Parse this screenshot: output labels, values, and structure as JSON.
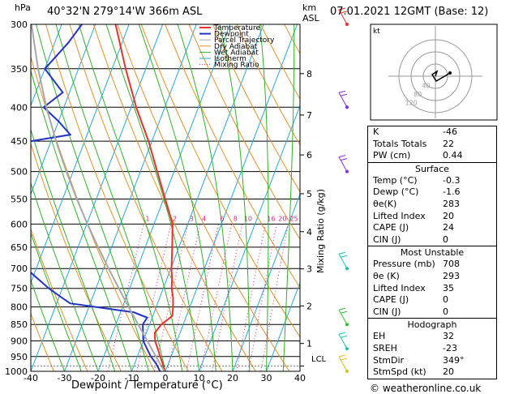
{
  "header": {
    "pressure_unit": "hPa",
    "location": "40°32'N 279°14'W 366m ASL",
    "height_unit": "km\nASL",
    "date": "07.01.2021 12GMT (Base: 12)",
    "watermark": "© weatheronline.co.uk"
  },
  "axes": {
    "xlabel": "Dewpoint / Temperature (°C)",
    "mixing_label": "Mixing Ratio (g/kg)",
    "lcl_label": "LCL"
  },
  "chart_data": {
    "type": "line",
    "title": "40°32'N 279°14'W 366m ASL",
    "xlabel": "Dewpoint / Temperature (°C)",
    "ylabel": "hPa",
    "xlim": [
      -40,
      40
    ],
    "x_ticks": [
      -40,
      -30,
      -20,
      -10,
      0,
      10,
      20,
      30,
      40
    ],
    "y_ticks": [
      300,
      350,
      400,
      450,
      500,
      550,
      600,
      650,
      700,
      750,
      800,
      850,
      900,
      950,
      1000
    ],
    "y_scale": "log",
    "ylim": [
      1000,
      300
    ],
    "km_ticks": [
      {
        "km": "1",
        "p": 908
      },
      {
        "km": "2",
        "p": 797
      },
      {
        "km": "3",
        "p": 701
      },
      {
        "km": "4",
        "p": 616
      },
      {
        "km": "5",
        "p": 540
      },
      {
        "km": "6",
        "p": 472
      },
      {
        "km": "7",
        "p": 411
      },
      {
        "km": "8",
        "p": 356
      }
    ],
    "mixing_ratio_labels": [
      "1",
      "2",
      "3",
      "4",
      "6",
      "8",
      "10",
      "16",
      "20",
      "25"
    ],
    "series": [
      {
        "name": "Temperature",
        "color": "#e8312a",
        "p": [
          1000,
          975,
          950,
          925,
          900,
          875,
          850,
          825,
          800,
          775,
          750,
          725,
          700,
          650,
          600,
          550,
          500,
          450,
          400,
          350,
          300
        ],
        "t": [
          -0.3,
          -1.6,
          -3.2,
          -4.8,
          -6.5,
          -7.5,
          -6.5,
          -4.2,
          -5.0,
          -6.0,
          -7.5,
          -8.5,
          -9.8,
          -12.0,
          -14.5,
          -19.5,
          -25.0,
          -31.0,
          -38.5,
          -46.0,
          -54.0
        ]
      },
      {
        "name": "Dewpoint",
        "color": "#2233c8",
        "p": [
          1000,
          975,
          950,
          925,
          900,
          875,
          850,
          830,
          815,
          800,
          790,
          770,
          750,
          700,
          650,
          600,
          550,
          500,
          490,
          470,
          450,
          440,
          420,
          400,
          380,
          350,
          320,
          300
        ],
        "t": [
          -1.6,
          -3.5,
          -6.0,
          -8.0,
          -10.0,
          -11.0,
          -12.0,
          -11.5,
          -16.0,
          -28.0,
          -36.0,
          -40.0,
          -44.0,
          -53.0,
          -56.0,
          -59.0,
          -62.0,
          -63.0,
          -66.0,
          -70.0,
          -66.0,
          -55.0,
          -60.0,
          -66.0,
          -62.0,
          -70.0,
          -66.0,
          -64.0
        ]
      },
      {
        "name": "Parcel Trajectory",
        "color": "#a8a8a8",
        "p": [
          1000,
          950,
          900,
          850,
          800,
          750,
          700,
          650,
          600,
          550,
          500,
          450,
          400,
          350,
          300
        ],
        "t": [
          -0.3,
          -4.5,
          -8.8,
          -13.4,
          -18.2,
          -23.2,
          -28.5,
          -34.0,
          -39.8,
          -45.8,
          -52.0,
          -58.5,
          -65.2,
          -72.0,
          -79.0
        ]
      }
    ],
    "legend": [
      "Temperature",
      "Dewpoint",
      "Parcel Trajectory",
      "Dry Adiabat",
      "Wet Adiabat",
      "Isotherm",
      "Mixing Ratio"
    ],
    "legend_placement": "top-right",
    "legend_colors": {
      "Temperature": "#e8312a",
      "Dewpoint": "#2233c8",
      "Parcel Trajectory": "#a8a8a8",
      "Dry Adiabat": "#e0912b",
      "Wet Adiabat": "#33b02a",
      "Isotherm": "#28a6d8",
      "Mixing Ratio": "#e0207a"
    },
    "lcl_pressure": 982,
    "wind_barb_pressures": [
      300,
      400,
      500,
      700,
      850,
      925,
      1000
    ],
    "hodograph": {
      "rings_kt": [
        "40",
        "80",
        "120"
      ],
      "label": "kt"
    }
  },
  "indices": {
    "k": {
      "label": "K",
      "value": "-46"
    },
    "tt": {
      "label": "Totals Totals",
      "value": "22"
    },
    "pw": {
      "label": "PW (cm)",
      "value": "0.44"
    }
  },
  "surface": {
    "title": "Surface",
    "rows": [
      {
        "label": "Temp (°C)",
        "value": "-0.3"
      },
      {
        "label": "Dewp (°C)",
        "value": "-1.6"
      },
      {
        "label": "θe(K)",
        "value": "283"
      },
      {
        "label": "Lifted Index",
        "value": "20"
      },
      {
        "label": "CAPE (J)",
        "value": "24"
      },
      {
        "label": "CIN (J)",
        "value": "0"
      }
    ]
  },
  "most_unstable": {
    "title": "Most Unstable",
    "rows": [
      {
        "label": "Pressure (mb)",
        "value": "708"
      },
      {
        "label": "θe (K)",
        "value": "293"
      },
      {
        "label": "Lifted Index",
        "value": "35"
      },
      {
        "label": "CAPE (J)",
        "value": "0"
      },
      {
        "label": "CIN (J)",
        "value": "0"
      }
    ]
  },
  "hodograph_table": {
    "title": "Hodograph",
    "rows": [
      {
        "label": "EH",
        "value": "32"
      },
      {
        "label": "SREH",
        "value": "-23"
      },
      {
        "label": "StmDir",
        "value": "349°"
      },
      {
        "label": "StmSpd (kt)",
        "value": "20"
      }
    ]
  }
}
